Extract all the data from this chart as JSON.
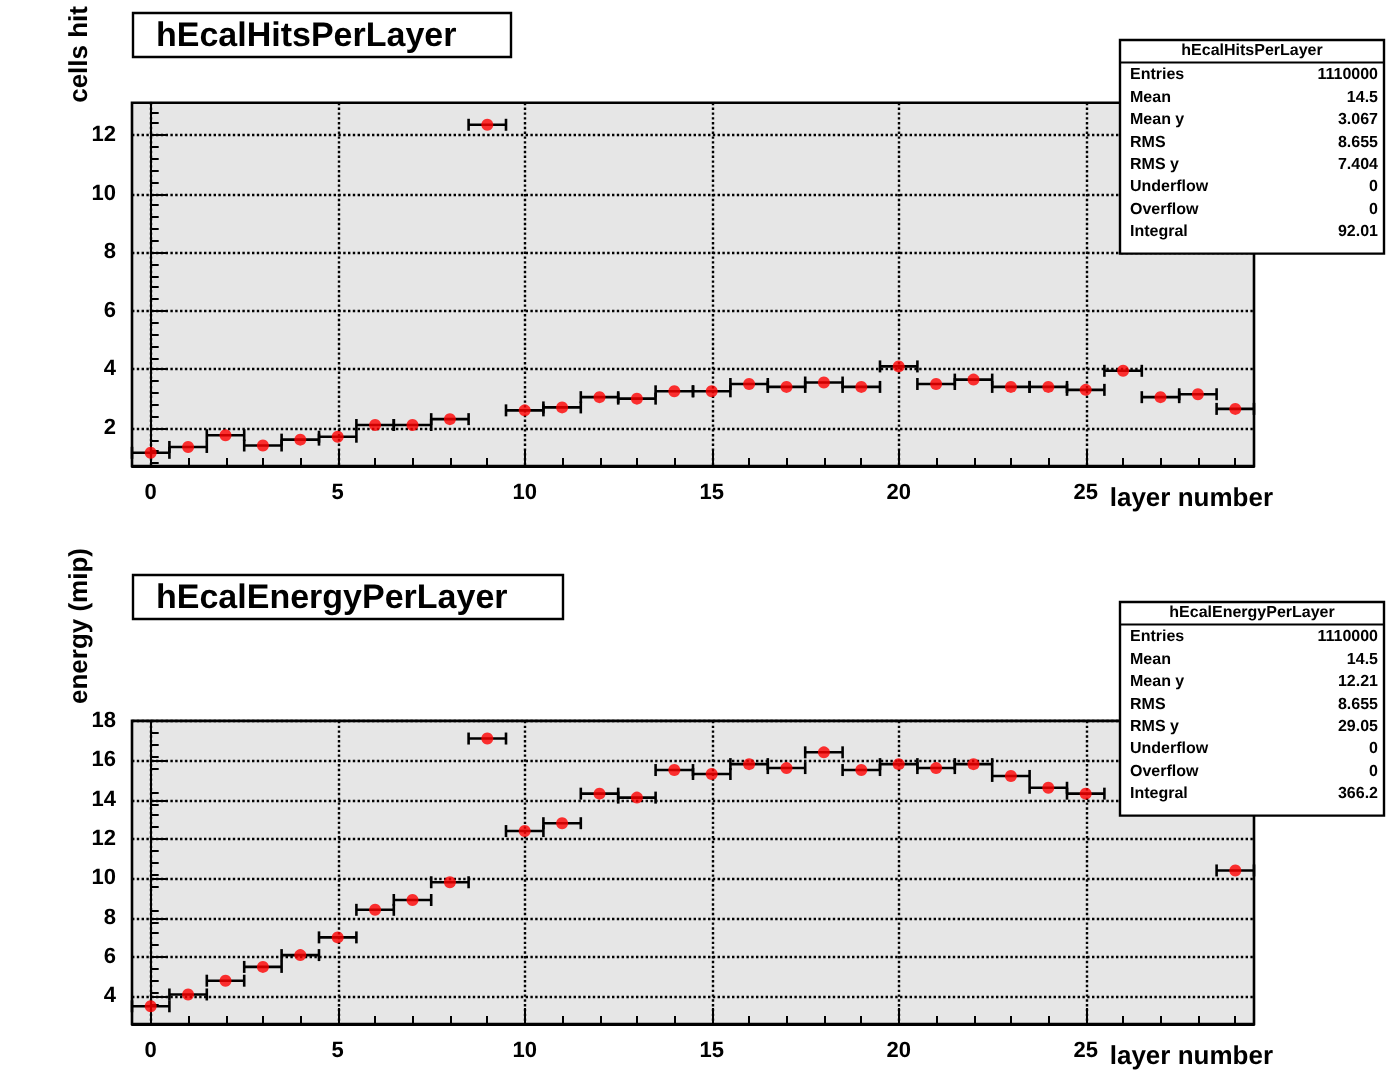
{
  "chart_data": [
    {
      "type": "scatter",
      "title": "hEcalHitsPerLayer",
      "xlabel": "layer number",
      "ylabel": "cells hit",
      "x": [
        0,
        1,
        2,
        3,
        4,
        5,
        6,
        7,
        8,
        9,
        10,
        11,
        12,
        13,
        14,
        15,
        16,
        17,
        18,
        19,
        20,
        21,
        22,
        23,
        24,
        25,
        26,
        27,
        28,
        29
      ],
      "series": [
        {
          "color": "#ff0000",
          "values": [
            1.15,
            1.35,
            1.75,
            1.4,
            1.6,
            1.7,
            2.1,
            2.1,
            2.3,
            12.35,
            2.6,
            2.7,
            3.05,
            3.0,
            3.25,
            3.25,
            3.5,
            3.4,
            3.55,
            3.4,
            4.1,
            3.5,
            3.65,
            3.4,
            3.4,
            3.3,
            3.95,
            3.05,
            3.15,
            2.65
          ],
          "xerrors": [
            0.5,
            0.5,
            0.5,
            0.5,
            0.5,
            0.5,
            0.5,
            0.5,
            0.5,
            0.5,
            0.5,
            0.5,
            0.5,
            0.5,
            0.5,
            0.5,
            0.5,
            0.5,
            0.5,
            0.5,
            0.5,
            0.5,
            0.5,
            0.5,
            0.5,
            0.5,
            0.5,
            0.5,
            0.5,
            0.5
          ]
        }
      ],
      "xlim": [
        -0.5,
        29.5
      ],
      "xticks": [
        0,
        5,
        10,
        15,
        20,
        25
      ],
      "ylim": [
        0.7,
        13.1
      ],
      "yticks": [
        2,
        4,
        6,
        8,
        10,
        12
      ],
      "grid": true,
      "marker": "circle",
      "annotations": [
        "hEcalHitsPerLayer",
        "Entries 1110000",
        "Mean 14.5",
        "Mean y 3.067",
        "RMS 8.655",
        "RMS y 7.404",
        "Underflow 0",
        "Overflow 0",
        "Integral 92.01"
      ]
    },
    {
      "type": "scatter",
      "title": "hEcalEnergyPerLayer",
      "xlabel": "layer number",
      "ylabel": "energy (mip)",
      "x": [
        0,
        1,
        2,
        3,
        4,
        5,
        6,
        7,
        8,
        9,
        10,
        11,
        12,
        13,
        14,
        15,
        16,
        17,
        18,
        19,
        20,
        21,
        22,
        23,
        24,
        25,
        26,
        27,
        28,
        29
      ],
      "series": [
        {
          "color": "#ff0000",
          "values": [
            3.5,
            4.1,
            4.8,
            5.5,
            6.1,
            7.0,
            8.4,
            8.9,
            9.8,
            17.1,
            12.4,
            12.8,
            14.3,
            14.1,
            15.5,
            15.3,
            15.8,
            15.6,
            16.4,
            15.5,
            15.8,
            15.6,
            15.8,
            15.2,
            14.6,
            14.3,
            null,
            null,
            null,
            10.4
          ],
          "xerrors": [
            0.5,
            0.5,
            0.5,
            0.5,
            0.5,
            0.5,
            0.5,
            0.5,
            0.5,
            0.5,
            0.5,
            0.5,
            0.5,
            0.5,
            0.5,
            0.5,
            0.5,
            0.5,
            0.5,
            0.5,
            0.5,
            0.5,
            0.5,
            0.5,
            0.5,
            0.5,
            null,
            null,
            null,
            0.5
          ]
        }
      ],
      "xlim": [
        -0.5,
        29.5
      ],
      "xticks": [
        0,
        5,
        10,
        15,
        20,
        25
      ],
      "ylim": [
        2.6,
        18
      ],
      "yticks": [
        4,
        6,
        8,
        10,
        12,
        14,
        16,
        18
      ],
      "grid": true,
      "marker": "circle",
      "annotations": [
        "hEcalEnergyPerLayer",
        "Entries 1110000",
        "Mean 14.5",
        "Mean y 12.21",
        "RMS 8.655",
        "RMS y 29.05",
        "Underflow 0",
        "Overflow 0",
        "Integral 366.2"
      ]
    }
  ]
}
